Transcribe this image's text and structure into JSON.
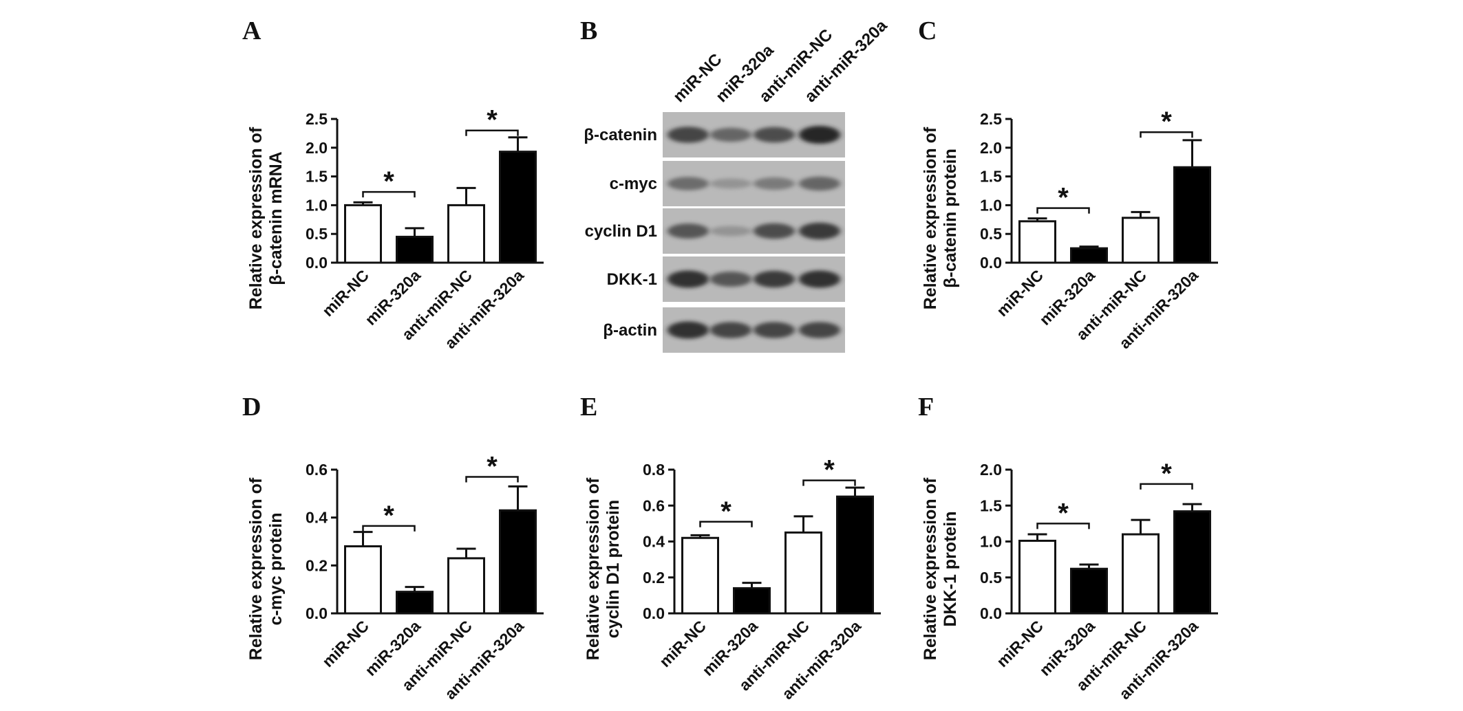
{
  "panels": {
    "A": {
      "letter": "A"
    },
    "B": {
      "letter": "B"
    },
    "C": {
      "letter": "C"
    },
    "D": {
      "letter": "D"
    },
    "E": {
      "letter": "E"
    },
    "F": {
      "letter": "F"
    }
  },
  "blot": {
    "lanes": [
      "miR-NC",
      "miR-320a",
      "anti-miR-NC",
      "anti-miR-320a"
    ],
    "rows": [
      "β-catenin",
      "c-myc",
      "cyclin D1",
      "DKK-1",
      "β-actin"
    ],
    "band_intensity": [
      [
        0.85,
        0.65,
        0.8,
        1.0
      ],
      [
        0.6,
        0.3,
        0.5,
        0.65
      ],
      [
        0.75,
        0.3,
        0.8,
        0.9
      ],
      [
        0.95,
        0.75,
        0.9,
        0.95
      ],
      [
        0.95,
        0.85,
        0.85,
        0.85
      ]
    ]
  },
  "chart_data": [
    {
      "panel": "A",
      "type": "bar",
      "ylabel": [
        "Relative expression of",
        "β-catenin mRNA"
      ],
      "categories": [
        "miR-NC",
        "miR-320a",
        "anti-miR-NC",
        "anti-miR-320a"
      ],
      "values": [
        1.0,
        0.45,
        1.0,
        1.93
      ],
      "errors": [
        0.05,
        0.15,
        0.3,
        0.25
      ],
      "fills": [
        "#ffffff",
        "#000000",
        "#ffffff",
        "#000000"
      ],
      "ylim": [
        0,
        2.5
      ],
      "yticks": [
        "0.0",
        "0.5",
        "1.0",
        "1.5",
        "2.0",
        "2.5"
      ],
      "significance": [
        {
          "from": 0,
          "to": 1,
          "y": 1.23,
          "label": "*"
        },
        {
          "from": 2,
          "to": 3,
          "y": 2.3,
          "label": "*"
        }
      ]
    },
    {
      "panel": "C",
      "type": "bar",
      "ylabel": [
        "Relative expression of",
        "β-catenin protein"
      ],
      "categories": [
        "miR-NC",
        "miR-320a",
        "anti-miR-NC",
        "anti-miR-320a"
      ],
      "values": [
        0.72,
        0.25,
        0.78,
        1.66
      ],
      "errors": [
        0.05,
        0.03,
        0.1,
        0.47
      ],
      "fills": [
        "#ffffff",
        "#000000",
        "#ffffff",
        "#000000"
      ],
      "ylim": [
        0,
        2.5
      ],
      "yticks": [
        "0.0",
        "0.5",
        "1.0",
        "1.5",
        "2.0",
        "2.5"
      ],
      "significance": [
        {
          "from": 0,
          "to": 1,
          "y": 0.95,
          "label": "*"
        },
        {
          "from": 2,
          "to": 3,
          "y": 2.27,
          "label": "*"
        }
      ]
    },
    {
      "panel": "D",
      "type": "bar",
      "ylabel": [
        "Relative expression of",
        "c-myc protein"
      ],
      "categories": [
        "miR-NC",
        "miR-320a",
        "anti-miR-NC",
        "anti-miR-320a"
      ],
      "values": [
        0.28,
        0.09,
        0.23,
        0.43
      ],
      "errors": [
        0.06,
        0.02,
        0.04,
        0.1
      ],
      "fills": [
        "#ffffff",
        "#000000",
        "#ffffff",
        "#000000"
      ],
      "ylim": [
        0,
        0.6
      ],
      "yticks": [
        "0.0",
        "0.2",
        "0.4",
        "0.6"
      ],
      "significance": [
        {
          "from": 0,
          "to": 1,
          "y": 0.365,
          "label": "*"
        },
        {
          "from": 2,
          "to": 3,
          "y": 0.57,
          "label": "*"
        }
      ]
    },
    {
      "panel": "E",
      "type": "bar",
      "ylabel": [
        "Relative expression of",
        "cyclin D1 protein"
      ],
      "categories": [
        "miR-NC",
        "miR-320a",
        "anti-miR-NC",
        "anti-miR-320a"
      ],
      "values": [
        0.42,
        0.14,
        0.45,
        0.65
      ],
      "errors": [
        0.015,
        0.03,
        0.09,
        0.05
      ],
      "fills": [
        "#ffffff",
        "#000000",
        "#ffffff",
        "#000000"
      ],
      "ylim": [
        0,
        0.8
      ],
      "yticks": [
        "0.0",
        "0.2",
        "0.4",
        "0.6",
        "0.8"
      ],
      "significance": [
        {
          "from": 0,
          "to": 1,
          "y": 0.51,
          "label": "*"
        },
        {
          "from": 2,
          "to": 3,
          "y": 0.74,
          "label": "*"
        }
      ]
    },
    {
      "panel": "F",
      "type": "bar",
      "ylabel": [
        "Relative expression of",
        "DKK-1 protein"
      ],
      "categories": [
        "miR-NC",
        "miR-320a",
        "anti-miR-NC",
        "anti-miR-320a"
      ],
      "values": [
        1.01,
        0.62,
        1.1,
        1.42
      ],
      "errors": [
        0.09,
        0.06,
        0.2,
        0.1
      ],
      "fills": [
        "#ffffff",
        "#000000",
        "#ffffff",
        "#000000"
      ],
      "ylim": [
        0,
        2.0
      ],
      "yticks": [
        "0.0",
        "0.5",
        "1.0",
        "1.5",
        "2.0"
      ],
      "significance": [
        {
          "from": 0,
          "to": 1,
          "y": 1.25,
          "label": "*"
        },
        {
          "from": 2,
          "to": 3,
          "y": 1.8,
          "label": "*"
        }
      ]
    }
  ]
}
